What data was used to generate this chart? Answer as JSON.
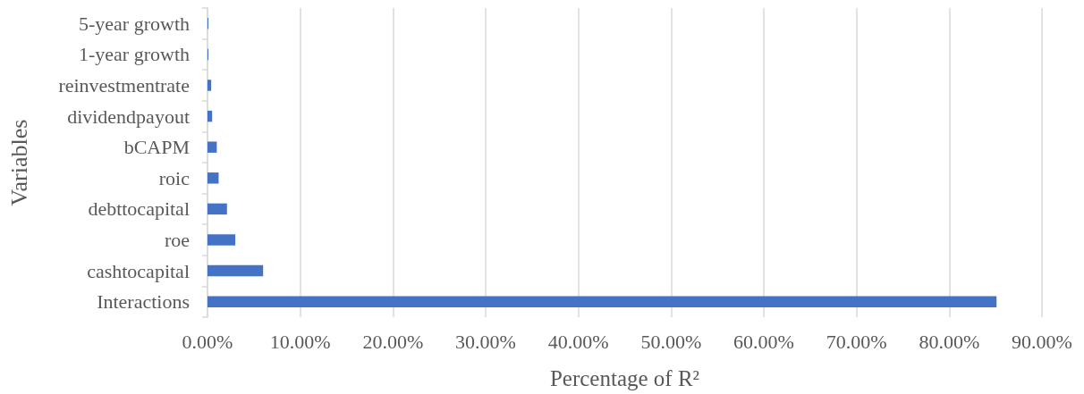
{
  "chart_data": {
    "type": "bar",
    "orientation": "horizontal",
    "xlabel": "Percentage of R²",
    "ylabel": "Variables",
    "categories": [
      "5-year growth",
      "1-year growth",
      "reinvestmentrate",
      "dividendpayout",
      "bCAPM",
      "roic",
      "debttocapital",
      "roe",
      "cashtocapital",
      "Interactions"
    ],
    "values": [
      0.1,
      0.1,
      0.4,
      0.5,
      1.0,
      1.2,
      2.1,
      3.0,
      6.0,
      85.1
    ],
    "color": "#4472c4",
    "xlim": [
      0,
      90
    ],
    "xticks": [
      {
        "value": 0,
        "label": "0.00%"
      },
      {
        "value": 10,
        "label": "10.00%"
      },
      {
        "value": 20,
        "label": "20.00%"
      },
      {
        "value": 30,
        "label": "30.00%"
      },
      {
        "value": 40,
        "label": "40.00%"
      },
      {
        "value": 50,
        "label": "50.00%"
      },
      {
        "value": 60,
        "label": "60.00%"
      },
      {
        "value": 70,
        "label": "70.00%"
      },
      {
        "value": 80,
        "label": "80.00%"
      },
      {
        "value": 90,
        "label": "90.00%"
      }
    ],
    "grid": "x"
  }
}
